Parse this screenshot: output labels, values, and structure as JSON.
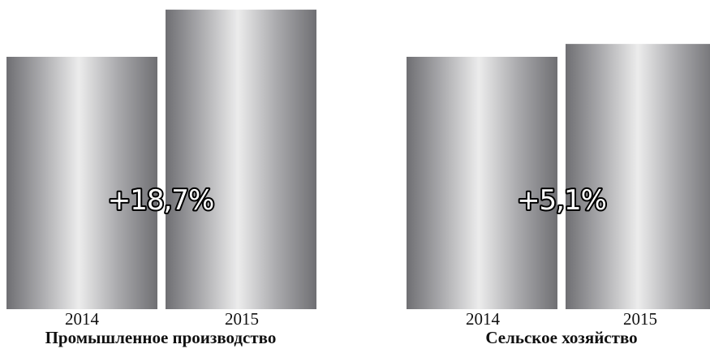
{
  "chart_data": [
    {
      "type": "bar",
      "title": "Промышленное производство",
      "categories": [
        "2014",
        "2015"
      ],
      "values": [
        100,
        118.7
      ],
      "growth_label": "+18,7%",
      "colors": {
        "bar_edge": "#6f6f73",
        "bar_highlight": "#ececec"
      }
    },
    {
      "type": "bar",
      "title": "Сельское хозяйство",
      "categories": [
        "2014",
        "2015"
      ],
      "values": [
        100,
        105.1
      ],
      "growth_label": "+5,1%",
      "colors": {
        "bar_edge": "#6f6f73",
        "bar_highlight": "#ececec"
      }
    }
  ]
}
